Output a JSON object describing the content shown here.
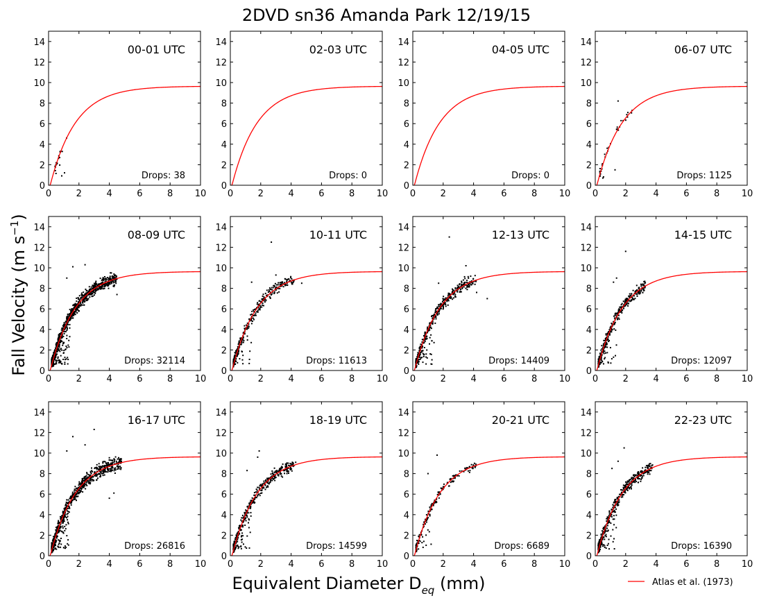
{
  "figure": {
    "title": "2DVD sn36 Amanda Park 12/19/15",
    "ylabel_main": "Fall Velocity (m s",
    "ylabel_sup": "−1",
    "ylabel_close": ")",
    "xlabel_main": "Equivalent Diameter D",
    "xlabel_sub": "eq",
    "xlabel_close": " (mm)",
    "legend": {
      "label": "Atlas et al. (1973)",
      "color": "#ff0000",
      "location": "lower-right"
    },
    "colors": {
      "points": "#000000",
      "curve": "#ff0000",
      "axes": "#000000",
      "background": "#ffffff"
    }
  },
  "chart_data": [
    {
      "type": "scatter",
      "title": "00-01 UTC",
      "drops_label": "Drops: 38",
      "drops": 38,
      "xlim": [
        0,
        10
      ],
      "ylim": [
        0,
        15
      ],
      "xticks": [
        0,
        2,
        4,
        6,
        8,
        10
      ],
      "yticks": [
        0,
        2,
        4,
        6,
        8,
        10,
        12,
        14
      ],
      "grid": false,
      "d_range": [
        0.4,
        1.5
      ],
      "spread": 0.3,
      "outliers": []
    },
    {
      "type": "scatter",
      "title": "02-03 UTC",
      "drops_label": "Drops: 0",
      "drops": 0,
      "xlim": [
        0,
        10
      ],
      "ylim": [
        0,
        15
      ],
      "xticks": [
        0,
        2,
        4,
        6,
        8,
        10
      ],
      "yticks": [
        0,
        2,
        4,
        6,
        8,
        10,
        12,
        14
      ],
      "grid": false,
      "d_range": [
        0.3,
        1.0
      ],
      "spread": 0.3,
      "outliers": []
    },
    {
      "type": "scatter",
      "title": "04-05 UTC",
      "drops_label": "Drops: 0",
      "drops": 0,
      "xlim": [
        0,
        10
      ],
      "ylim": [
        0,
        15
      ],
      "xticks": [
        0,
        2,
        4,
        6,
        8,
        10
      ],
      "yticks": [
        0,
        2,
        4,
        6,
        8,
        10,
        12,
        14
      ],
      "grid": false,
      "d_range": [
        0.3,
        1.0
      ],
      "spread": 0.3,
      "outliers": []
    },
    {
      "type": "scatter",
      "title": "06-07 UTC",
      "drops_label": "Drops: 1125",
      "drops": 1125,
      "xlim": [
        0,
        10
      ],
      "ylim": [
        0,
        15
      ],
      "xticks": [
        0,
        2,
        4,
        6,
        8,
        10
      ],
      "yticks": [
        0,
        2,
        4,
        6,
        8,
        10,
        12,
        14
      ],
      "grid": false,
      "d_range": [
        0.3,
        2.5
      ],
      "spread": 0.35,
      "outliers": [
        [
          1.5,
          8.2
        ],
        [
          1.3,
          1.5
        ],
        [
          0.5,
          0.7
        ]
      ]
    },
    {
      "type": "scatter",
      "title": "08-09 UTC",
      "drops_label": "Drops: 32114",
      "drops": 32114,
      "xlim": [
        0,
        10
      ],
      "ylim": [
        0,
        15
      ],
      "xticks": [
        0,
        2,
        4,
        6,
        8,
        10
      ],
      "yticks": [
        0,
        2,
        4,
        6,
        8,
        10,
        12,
        14
      ],
      "grid": false,
      "d_range": [
        0.2,
        4.5
      ],
      "spread": 0.5,
      "outliers": [
        [
          2.4,
          10.3
        ],
        [
          1.6,
          10.1
        ],
        [
          4.5,
          7.4
        ],
        [
          1.2,
          9.0
        ]
      ]
    },
    {
      "type": "scatter",
      "title": "10-11 UTC",
      "drops_label": "Drops: 11613",
      "drops": 11613,
      "xlim": [
        0,
        10
      ],
      "ylim": [
        0,
        15
      ],
      "xticks": [
        0,
        2,
        4,
        6,
        8,
        10
      ],
      "yticks": [
        0,
        2,
        4,
        6,
        8,
        10,
        12,
        14
      ],
      "grid": false,
      "d_range": [
        0.2,
        4.2
      ],
      "spread": 0.45,
      "outliers": [
        [
          2.7,
          12.5
        ],
        [
          4.7,
          8.5
        ],
        [
          3.0,
          9.3
        ],
        [
          1.4,
          8.6
        ]
      ]
    },
    {
      "type": "scatter",
      "title": "12-13 UTC",
      "drops_label": "Drops: 14409",
      "drops": 14409,
      "xlim": [
        0,
        10
      ],
      "ylim": [
        0,
        15
      ],
      "xticks": [
        0,
        2,
        4,
        6,
        8,
        10
      ],
      "yticks": [
        0,
        2,
        4,
        6,
        8,
        10,
        12,
        14
      ],
      "grid": false,
      "d_range": [
        0.2,
        4.2
      ],
      "spread": 0.5,
      "outliers": [
        [
          2.4,
          13.0
        ],
        [
          3.5,
          10.2
        ],
        [
          4.9,
          7.0
        ],
        [
          4.2,
          7.6
        ],
        [
          1.7,
          8.5
        ]
      ]
    },
    {
      "type": "scatter",
      "title": "14-15 UTC",
      "drops_label": "Drops: 12097",
      "drops": 12097,
      "xlim": [
        0,
        10
      ],
      "ylim": [
        0,
        15
      ],
      "xticks": [
        0,
        2,
        4,
        6,
        8,
        10
      ],
      "yticks": [
        0,
        2,
        4,
        6,
        8,
        10,
        12,
        14
      ],
      "grid": false,
      "d_range": [
        0.2,
        3.3
      ],
      "spread": 0.45,
      "outliers": [
        [
          2.0,
          11.6
        ],
        [
          1.2,
          8.6
        ],
        [
          1.4,
          9.0
        ]
      ]
    },
    {
      "type": "scatter",
      "title": "16-17 UTC",
      "drops_label": "Drops: 26816",
      "drops": 26816,
      "xlim": [
        0,
        10
      ],
      "ylim": [
        0,
        15
      ],
      "xticks": [
        0,
        2,
        4,
        6,
        8,
        10
      ],
      "yticks": [
        0,
        2,
        4,
        6,
        8,
        10,
        12,
        14
      ],
      "grid": false,
      "d_range": [
        0.2,
        4.8
      ],
      "spread": 0.55,
      "outliers": [
        [
          3.0,
          12.3
        ],
        [
          1.6,
          11.6
        ],
        [
          2.4,
          10.8
        ],
        [
          4.0,
          5.6
        ],
        [
          4.3,
          6.1
        ],
        [
          1.2,
          10.2
        ]
      ]
    },
    {
      "type": "scatter",
      "title": "18-19 UTC",
      "drops_label": "Drops: 14599",
      "drops": 14599,
      "xlim": [
        0,
        10
      ],
      "ylim": [
        0,
        15
      ],
      "xticks": [
        0,
        2,
        4,
        6,
        8,
        10
      ],
      "yticks": [
        0,
        2,
        4,
        6,
        8,
        10,
        12,
        14
      ],
      "grid": false,
      "d_range": [
        0.2,
        4.2
      ],
      "spread": 0.45,
      "outliers": [
        [
          1.9,
          10.2
        ],
        [
          1.8,
          9.6
        ],
        [
          4.3,
          9.1
        ],
        [
          1.1,
          8.3
        ]
      ]
    },
    {
      "type": "scatter",
      "title": "20-21 UTC",
      "drops_label": "Drops: 6689",
      "drops": 6689,
      "xlim": [
        0,
        10
      ],
      "ylim": [
        0,
        15
      ],
      "xticks": [
        0,
        2,
        4,
        6,
        8,
        10
      ],
      "yticks": [
        0,
        2,
        4,
        6,
        8,
        10,
        12,
        14
      ],
      "grid": false,
      "d_range": [
        0.2,
        4.2
      ],
      "spread": 0.35,
      "outliers": [
        [
          1.6,
          9.8
        ],
        [
          1.0,
          8.0
        ],
        [
          4.1,
          8.6
        ]
      ]
    },
    {
      "type": "scatter",
      "title": "22-23 UTC",
      "drops_label": "Drops: 16390",
      "drops": 16390,
      "xlim": [
        0,
        10
      ],
      "ylim": [
        0,
        15
      ],
      "xticks": [
        0,
        2,
        4,
        6,
        8,
        10
      ],
      "yticks": [
        0,
        2,
        4,
        6,
        8,
        10,
        12,
        14
      ],
      "grid": false,
      "d_range": [
        0.2,
        3.8
      ],
      "spread": 0.45,
      "outliers": [
        [
          1.9,
          10.5
        ],
        [
          1.5,
          9.2
        ],
        [
          3.3,
          8.6
        ],
        [
          1.1,
          8.5
        ]
      ]
    }
  ],
  "reference_curve": {
    "name": "Atlas et al. (1973)",
    "formula": "9.65 - 10.3*exp(-0.6*D)",
    "a": 9.65,
    "b": 10.3,
    "c": 0.6
  }
}
